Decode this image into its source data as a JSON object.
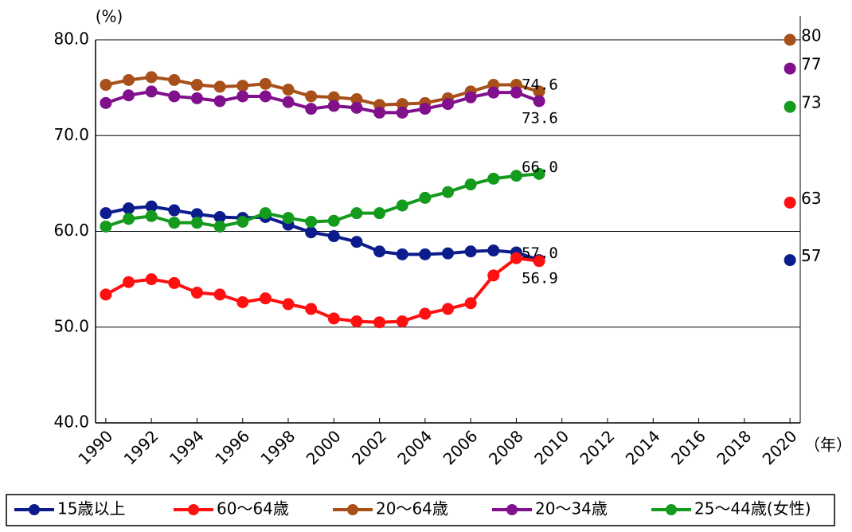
{
  "chart_data": {
    "type": "line",
    "y_unit": "(%)",
    "x_unit": "（年）",
    "x": [
      1990,
      1991,
      1992,
      1993,
      1994,
      1995,
      1996,
      1997,
      1998,
      1999,
      2000,
      2001,
      2002,
      2003,
      2004,
      2005,
      2006,
      2007,
      2008,
      2009
    ],
    "target_x": 2020,
    "series": [
      {
        "name": "15歳以上",
        "color": "#0c1c8c",
        "values": [
          61.9,
          62.4,
          62.6,
          62.2,
          61.8,
          61.5,
          61.4,
          61.5,
          60.7,
          59.9,
          59.5,
          58.9,
          57.9,
          57.6,
          57.6,
          57.7,
          57.9,
          58.0,
          57.8,
          57.0
        ],
        "value_labels": [
          null,
          null,
          null,
          null,
          null,
          null,
          null,
          null,
          null,
          null,
          null,
          null,
          null,
          null,
          null,
          null,
          null,
          null,
          null,
          "57.0"
        ],
        "target": 57
      },
      {
        "name": "60～64歳",
        "color": "#ff1010",
        "values": [
          53.4,
          54.7,
          55.0,
          54.6,
          53.6,
          53.4,
          52.6,
          53.0,
          52.4,
          51.9,
          50.9,
          50.6,
          50.5,
          50.6,
          51.4,
          51.9,
          52.5,
          55.4,
          57.2,
          56.9
        ],
        "value_labels": [
          null,
          null,
          null,
          null,
          null,
          null,
          null,
          null,
          null,
          null,
          null,
          null,
          null,
          null,
          null,
          null,
          null,
          null,
          null,
          "56.9"
        ],
        "target": 63
      },
      {
        "name": "20～64歳",
        "color": "#a8501a",
        "values": [
          75.3,
          75.8,
          76.1,
          75.8,
          75.3,
          75.1,
          75.2,
          75.4,
          74.8,
          74.1,
          74.0,
          73.8,
          73.2,
          73.3,
          73.4,
          73.9,
          74.6,
          75.3,
          75.3,
          74.6
        ],
        "value_labels": [
          null,
          null,
          null,
          null,
          null,
          null,
          null,
          null,
          null,
          null,
          null,
          null,
          null,
          null,
          null,
          null,
          null,
          null,
          null,
          "74.6"
        ],
        "target": 80
      },
      {
        "name": "20～34歳",
        "color": "#80108c",
        "values": [
          73.4,
          74.2,
          74.6,
          74.1,
          73.9,
          73.6,
          74.1,
          74.1,
          73.5,
          72.8,
          73.1,
          72.9,
          72.4,
          72.4,
          72.8,
          73.3,
          74.0,
          74.5,
          74.5,
          73.6
        ],
        "value_labels": [
          null,
          null,
          null,
          null,
          null,
          null,
          null,
          null,
          null,
          null,
          null,
          null,
          null,
          null,
          null,
          null,
          null,
          null,
          null,
          "73.6"
        ],
        "target": 77
      },
      {
        "name": "25～44歳(女性)",
        "color": "#149a1c",
        "values": [
          60.5,
          61.3,
          61.6,
          60.9,
          60.9,
          60.5,
          61.0,
          61.9,
          61.4,
          61.0,
          61.1,
          61.9,
          61.9,
          62.7,
          63.5,
          64.1,
          64.9,
          65.5,
          65.8,
          66.0
        ],
        "value_labels": [
          null,
          null,
          null,
          null,
          null,
          null,
          null,
          null,
          null,
          null,
          null,
          null,
          null,
          null,
          null,
          null,
          null,
          null,
          null,
          "66.0"
        ],
        "target": 73
      }
    ],
    "xlim": [
      1989.55,
      2020.45
    ],
    "xticks": [
      1990,
      1992,
      1994,
      1996,
      1998,
      2000,
      2002,
      2004,
      2006,
      2008,
      2010,
      2012,
      2014,
      2016,
      2018,
      2020
    ],
    "ylim": [
      40,
      80
    ],
    "yticks": [
      {
        "value": 40,
        "label": "40.0"
      },
      {
        "value": 50,
        "label": "50.0"
      },
      {
        "value": 60,
        "label": "60.0"
      },
      {
        "value": 70,
        "label": "70.0"
      },
      {
        "value": 80,
        "label": "80.0"
      }
    ],
    "grid": true,
    "legend": "bottom"
  }
}
